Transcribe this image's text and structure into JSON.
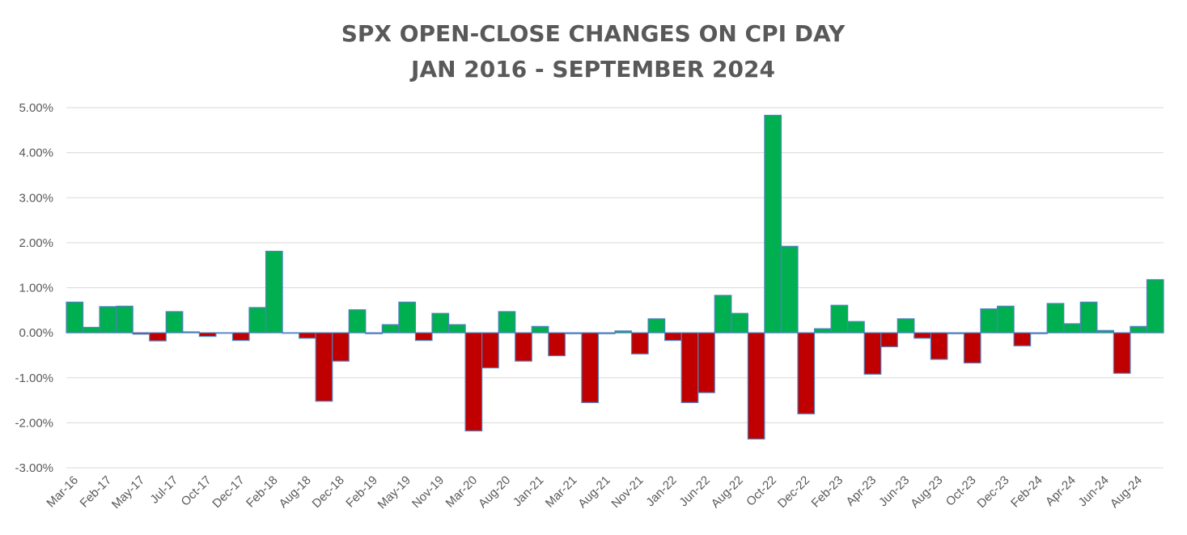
{
  "chart_data": {
    "type": "bar",
    "title": [
      "SPX OPEN-CLOSE CHANGES ON CPI DAY",
      "JAN 2016 - SEPTEMBER 2024"
    ],
    "xlabel": "",
    "ylabel": "",
    "ylim": [
      -3.0,
      5.0
    ],
    "y_ticks": [
      {
        "value": 5.0,
        "label": "5.00%"
      },
      {
        "value": 4.0,
        "label": "4.00%"
      },
      {
        "value": 3.0,
        "label": "3.00%"
      },
      {
        "value": 2.0,
        "label": "2.00%"
      },
      {
        "value": 1.0,
        "label": "1.00%"
      },
      {
        "value": 0.0,
        "label": "0.00%"
      },
      {
        "value": -1.0,
        "label": "-1.00%"
      },
      {
        "value": -2.0,
        "label": "-2.00%"
      },
      {
        "value": -3.0,
        "label": "-3.00%"
      }
    ],
    "x_tick_labels": [
      {
        "label": "Mar-16",
        "index": 0
      },
      {
        "label": "Feb-17",
        "index": 2
      },
      {
        "label": "May-17",
        "index": 4
      },
      {
        "label": "Jul-17",
        "index": 6
      },
      {
        "label": "Oct-17",
        "index": 8
      },
      {
        "label": "Dec-17",
        "index": 10
      },
      {
        "label": "Feb-18",
        "index": 12
      },
      {
        "label": "Aug-18",
        "index": 14
      },
      {
        "label": "Dec-18",
        "index": 16
      },
      {
        "label": "Feb-19",
        "index": 18
      },
      {
        "label": "May-19",
        "index": 20
      },
      {
        "label": "Nov-19",
        "index": 22
      },
      {
        "label": "Mar-20",
        "index": 24
      },
      {
        "label": "Aug-20",
        "index": 26
      },
      {
        "label": "Jan-21",
        "index": 28
      },
      {
        "label": "Mar-21",
        "index": 30
      },
      {
        "label": "Aug-21",
        "index": 32
      },
      {
        "label": "Nov-21",
        "index": 34
      },
      {
        "label": "Jan-22",
        "index": 36
      },
      {
        "label": "Jun-22",
        "index": 38
      },
      {
        "label": "Aug-22",
        "index": 40
      },
      {
        "label": "Oct-22",
        "index": 42
      },
      {
        "label": "Dec-22",
        "index": 44
      },
      {
        "label": "Feb-23",
        "index": 46
      },
      {
        "label": "Apr-23",
        "index": 48
      },
      {
        "label": "Jun-23",
        "index": 50
      },
      {
        "label": "Aug-23",
        "index": 52
      },
      {
        "label": "Oct-23",
        "index": 54
      },
      {
        "label": "Dec-23",
        "index": 56
      },
      {
        "label": "Feb-24",
        "index": 58
      },
      {
        "label": "Apr-24",
        "index": 60
      },
      {
        "label": "Jun-24",
        "index": 62
      },
      {
        "label": "Aug-24",
        "index": 64
      }
    ],
    "values": [
      0.68,
      0.12,
      0.58,
      0.59,
      -0.03,
      -0.18,
      0.47,
      0.02,
      -0.08,
      0.0,
      -0.17,
      0.56,
      1.81,
      0.0,
      -0.12,
      -1.52,
      -0.63,
      0.51,
      -0.02,
      0.18,
      0.68,
      -0.17,
      0.43,
      0.18,
      -2.18,
      -0.78,
      0.47,
      -0.63,
      0.14,
      -0.51,
      -0.02,
      -1.55,
      -0.02,
      0.04,
      -0.47,
      0.31,
      -0.17,
      -1.55,
      -1.33,
      0.83,
      0.43,
      -2.36,
      4.83,
      1.92,
      -1.8,
      0.09,
      0.61,
      0.25,
      -0.92,
      -0.31,
      0.31,
      -0.12,
      -0.59,
      -0.02,
      -0.67,
      0.53,
      0.59,
      -0.29,
      -0.02,
      0.65,
      0.2,
      0.68,
      0.05,
      -0.9,
      0.14,
      1.18
    ],
    "colors": {
      "positive": "#00b050",
      "negative": "#c00000",
      "border": "#4f81bd"
    },
    "grid": true,
    "legend": "none"
  }
}
